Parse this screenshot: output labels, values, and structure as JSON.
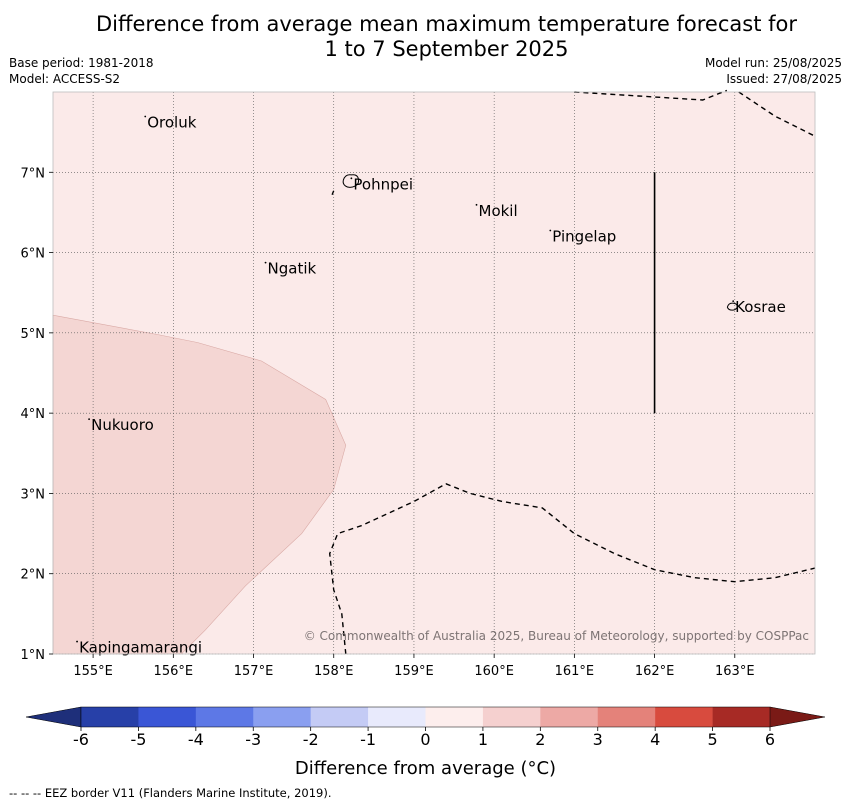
{
  "title": {
    "line1": "Difference from average mean maximum temperature forecast for",
    "line2": "1 to 7 September 2025"
  },
  "meta_left": {
    "base_period": "Base period: 1981-2018",
    "model": "Model: ACCESS-S2"
  },
  "meta_right": {
    "model_run": "Model run: 25/08/2025",
    "issued": "Issued: 27/08/2025"
  },
  "map": {
    "lon_range": [
      154.5,
      164.0
    ],
    "lat_range": [
      1.0,
      8.0
    ],
    "lon_ticks": [
      "155°E",
      "156°E",
      "157°E",
      "158°E",
      "159°E",
      "160°E",
      "161°E",
      "162°E",
      "163°E"
    ],
    "lat_ticks": [
      "1°N",
      "2°N",
      "3°N",
      "4°N",
      "5°N",
      "6°N",
      "7°N"
    ],
    "background_color": "#fbeae9",
    "anomaly_patch_color": "#f4d6d3",
    "places": [
      {
        "name": "Oroluk",
        "lon": 155.65,
        "lat": 7.62
      },
      {
        "name": "Pohnpei",
        "lon": 158.22,
        "lat": 6.85
      },
      {
        "name": "Mokil",
        "lon": 159.78,
        "lat": 6.52
      },
      {
        "name": "Pingelap",
        "lon": 160.7,
        "lat": 6.2
      },
      {
        "name": "Ngatik",
        "lon": 157.15,
        "lat": 5.8
      },
      {
        "name": "Kosrae",
        "lon": 162.98,
        "lat": 5.32
      },
      {
        "name": "Nukuoro",
        "lon": 154.95,
        "lat": 3.85
      },
      {
        "name": "Kapingamarangi",
        "lon": 154.8,
        "lat": 1.08
      }
    ],
    "copyright": "© Commonwealth of Australia 2025, Bureau of Meteorology, supported by COSPPac"
  },
  "colorbar": {
    "ticks": [
      "-6",
      "-5",
      "-4",
      "-3",
      "-2",
      "-1",
      "0",
      "1",
      "2",
      "3",
      "4",
      "5",
      "6"
    ],
    "colors": [
      "#2740a8",
      "#3a56d6",
      "#5d78e6",
      "#8a9ff0",
      "#c4cbf5",
      "#e8eafc",
      "#fdeeed",
      "#f5d0cf",
      "#eda9a5",
      "#e4827a",
      "#d84b3e",
      "#a72a25"
    ],
    "under_color": "#1e2f7a",
    "over_color": "#7a1a16",
    "label": "Difference from average (°C)"
  },
  "footnote": "--  --  -- EEZ border V11 (Flanders Marine Institute, 2019)."
}
